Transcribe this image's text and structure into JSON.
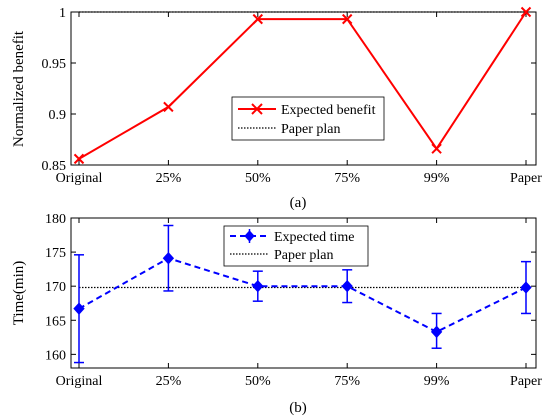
{
  "chart_data": [
    {
      "type": "line",
      "caption": "(a)",
      "categories": [
        "Original",
        "25%",
        "50%",
        "75%",
        "99%",
        "Paper"
      ],
      "ylabel": "Normalized benefit",
      "ylim": [
        0.85,
        1.0
      ],
      "yticks": [
        "0.85",
        "0.9",
        "0.95",
        "1"
      ],
      "grid": false,
      "legend_position": "lower-right",
      "series": [
        {
          "name": "Expected benefit",
          "values": [
            0.856,
            0.907,
            0.993,
            0.993,
            0.866,
            1.0
          ],
          "color": "#ff0000",
          "style": "solid",
          "marker": "x"
        },
        {
          "name": "Paper plan",
          "values": [
            1.0,
            1.0,
            1.0,
            1.0,
            1.0,
            1.0
          ],
          "color": "#000000",
          "style": "dotted",
          "marker": "none"
        }
      ]
    },
    {
      "type": "line",
      "caption": "(b)",
      "categories": [
        "Original",
        "25%",
        "50%",
        "75%",
        "99%",
        "Paper"
      ],
      "ylabel": "Time(min)",
      "ylim": [
        158,
        180
      ],
      "yticks": [
        "160",
        "165",
        "170",
        "175",
        "180"
      ],
      "grid": false,
      "legend_position": "top-center",
      "series": [
        {
          "name": "Expected time",
          "values": [
            166.7,
            174.1,
            170.0,
            170.0,
            163.3,
            169.8
          ],
          "error_low": [
            158.8,
            169.3,
            167.8,
            167.6,
            160.9,
            166.0
          ],
          "error_high": [
            174.6,
            178.9,
            172.2,
            172.4,
            166.0,
            173.6
          ],
          "color": "#0000ff",
          "style": "dashed",
          "marker": "diamond"
        },
        {
          "name": "Paper plan",
          "values": [
            169.8,
            169.8,
            169.8,
            169.8,
            169.8,
            169.8
          ],
          "color": "#000000",
          "style": "dotted",
          "marker": "none"
        }
      ]
    }
  ]
}
